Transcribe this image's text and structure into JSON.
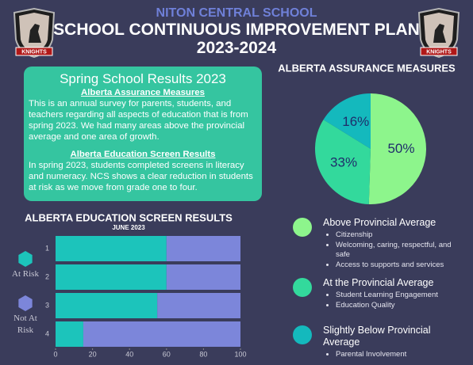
{
  "header": {
    "school": "NITON CENTRAL SCHOOL",
    "title": "SCHOOL CONTINUOUS IMPROVEMENT PLAN",
    "year": "2023-2024",
    "logo_text": "KNIGHTS"
  },
  "text_box": {
    "title": "Spring School Results 2023",
    "sections": [
      {
        "heading": "Alberta Assurance Measures",
        "body": "This is an annual survey for parents, students, and teachers regarding all aspects of education that is from spring 2023. We had many areas above the provincial average and one area of growth."
      },
      {
        "heading": "Alberta Education Screen Results",
        "body": "In spring 2023, students completed screens in literacy and numeracy. NCS shows a clear reduction in students at risk as we move from grade one to four."
      }
    ]
  },
  "chart_data": [
    {
      "type": "pie",
      "title": "ALBERTA ASSURANCE MEASURES",
      "categories": [
        "Above Provincial Average",
        "At the Provincial Average",
        "Slightly Below Provincial Average"
      ],
      "values": [
        50,
        33,
        16
      ],
      "value_labels": [
        "50%",
        "33%",
        "16%"
      ],
      "colors": [
        "#8df58c",
        "#33d99c",
        "#14b9bd"
      ],
      "details": [
        [
          "Citizenship",
          "Welcoming, caring, respectful, and safe",
          "Access to supports and services"
        ],
        [
          "Student Learning Engagement",
          "Education Quality"
        ],
        [
          "Parental Involvement"
        ]
      ]
    },
    {
      "type": "stacked-bar-horizontal",
      "title": "ALBERTA EDUCATION SCREEN RESULTS",
      "subtitle": "JUNE 2023",
      "categories": [
        "1",
        "2",
        "3",
        "4"
      ],
      "series": [
        {
          "name": "At Risk",
          "color": "#1cc4bb",
          "values": [
            60,
            60,
            55,
            15
          ]
        },
        {
          "name": "Not At Risk",
          "color": "#7c86da",
          "values": [
            40,
            40,
            45,
            85
          ]
        }
      ],
      "xlim": [
        0,
        100
      ],
      "xticks": [
        0,
        20,
        40,
        60,
        80,
        100
      ]
    }
  ]
}
